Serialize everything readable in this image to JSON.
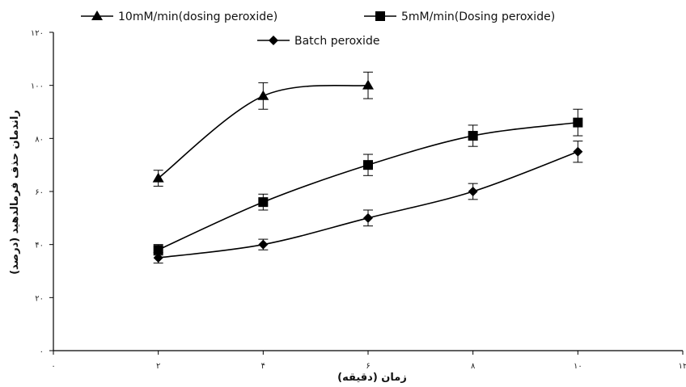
{
  "chart_data": {
    "type": "line",
    "title": "",
    "xlabel": "زمان (دقیقه)",
    "ylabel": "راندمان حذف فرمالدهید (درصد)",
    "xlim": [
      0,
      12
    ],
    "ylim": [
      0,
      120
    ],
    "x_ticks": [
      0,
      2,
      4,
      6,
      8,
      10,
      12
    ],
    "x_tick_labels": [
      "۰",
      "۲",
      "۴",
      "۶",
      "۸",
      "۱۰",
      "۱۲"
    ],
    "y_ticks": [
      0,
      20,
      40,
      60,
      80,
      100,
      120
    ],
    "y_tick_labels": [
      "۰",
      "۲۰",
      "۴۰",
      "۶۰",
      "۸۰",
      "۱۰۰",
      "۱۲۰"
    ],
    "grid": false,
    "legend_position": "top",
    "series": [
      {
        "name": "10mM/min(dosing peroxide)",
        "marker": "triangle",
        "color": "#000000",
        "x": [
          2,
          4,
          6
        ],
        "y": [
          65,
          96,
          100
        ],
        "error": [
          3,
          5,
          5
        ]
      },
      {
        "name": "5mM/min(Dosing peroxide)",
        "marker": "square",
        "color": "#000000",
        "x": [
          2,
          4,
          6,
          8,
          10
        ],
        "y": [
          38,
          56,
          70,
          81,
          86
        ],
        "error": [
          2,
          3,
          4,
          4,
          5
        ]
      },
      {
        "name": "Batch peroxide",
        "marker": "diamond",
        "color": "#000000",
        "x": [
          2,
          4,
          6,
          8,
          10
        ],
        "y": [
          35,
          40,
          50,
          60,
          75
        ],
        "error": [
          2,
          2,
          3,
          3,
          4
        ]
      }
    ]
  }
}
